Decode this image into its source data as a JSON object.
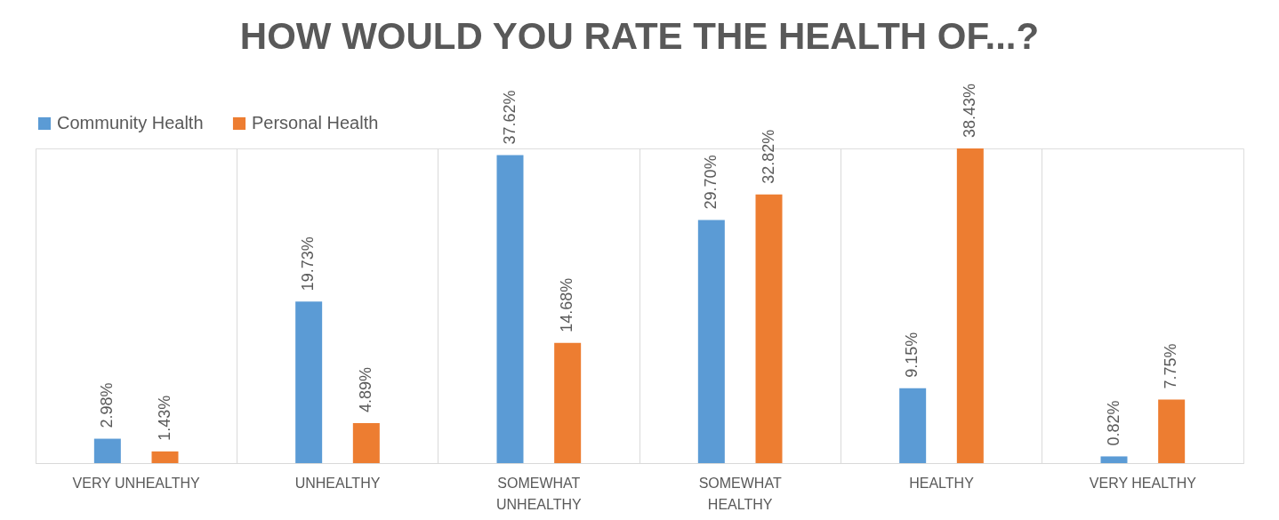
{
  "chart_data": {
    "type": "bar",
    "title": "HOW WOULD YOU RATE THE HEALTH OF...?",
    "categories": [
      "VERY UNHEALTHY",
      "UNHEALTHY",
      "SOMEWHAT UNHEALTHY",
      "SOMEWHAT HEALTHY",
      "HEALTHY",
      "VERY HEALTHY"
    ],
    "series": [
      {
        "name": "Community Health",
        "color": "#5b9bd5",
        "values": [
          2.98,
          19.73,
          37.62,
          29.7,
          9.15,
          0.82
        ],
        "value_labels": [
          "2.98%",
          "19.73%",
          "37.62%",
          "29.70%",
          "9.15%",
          "0.82%"
        ]
      },
      {
        "name": "Personal Health",
        "color": "#ed7d31",
        "values": [
          1.43,
          4.89,
          14.68,
          32.82,
          38.43,
          7.75
        ],
        "value_labels": [
          "1.43%",
          "4.89%",
          "14.68%",
          "32.82%",
          "38.43%",
          "7.75%"
        ]
      }
    ],
    "legend": "top",
    "grid": "x"
  }
}
